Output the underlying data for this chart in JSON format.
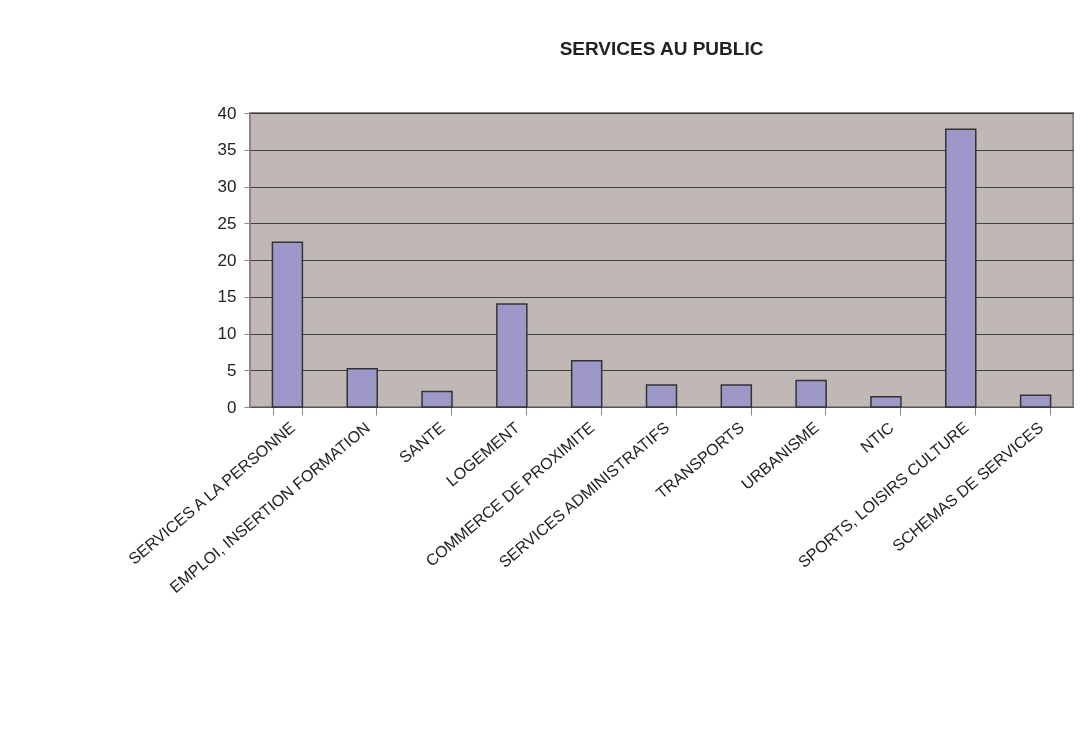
{
  "chart_data": {
    "type": "bar",
    "title": "SERVICES AU PUBLIC",
    "categories": [
      "SERVICES A  LA PERSONNE",
      "EMPLOI, INSERTION FORMATION",
      "SANTE",
      "LOGEMENT",
      "COMMERCE DE PROXIMITE",
      "SERVICES  ADMINISTRATIFS",
      "TRANSPORTS",
      "URBANISME",
      "NTIC",
      "SPORTS, LOISIRS CULTURE",
      "SCHEMAS DE SERVICES"
    ],
    "values": [
      22.4,
      5.2,
      2.1,
      14.0,
      6.3,
      3.0,
      3.0,
      3.6,
      1.4,
      37.8,
      1.6
    ],
    "color": "#9d98c8",
    "ylim": [
      0,
      40
    ],
    "yticks": [
      0,
      5,
      10,
      15,
      20,
      25,
      30,
      35,
      40
    ],
    "grid": "y"
  }
}
